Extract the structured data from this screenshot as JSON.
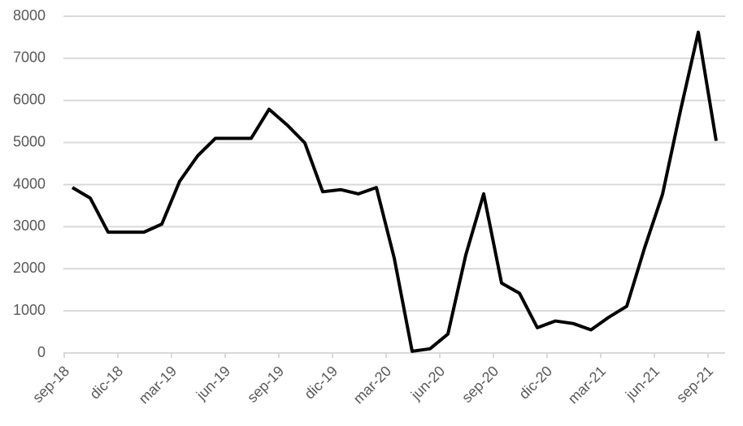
{
  "chart_data": {
    "type": "line",
    "categories": [
      "sep-18",
      null,
      null,
      "dic-18",
      null,
      null,
      "mar-19",
      null,
      null,
      "jun-19",
      null,
      null,
      "sep-19",
      null,
      null,
      "dic-19",
      null,
      null,
      "mar-20",
      null,
      null,
      "jun-20",
      null,
      null,
      "sep-20",
      null,
      null,
      "dic-20",
      null,
      null,
      "mar-21",
      null,
      null,
      "jun-21",
      null,
      null,
      "sep-21"
    ],
    "values": [
      3930,
      3680,
      2870,
      2870,
      2870,
      3060,
      4080,
      4680,
      5100,
      5100,
      5100,
      5790,
      5420,
      4990,
      3830,
      3880,
      3780,
      3930,
      2250,
      40,
      100,
      450,
      2330,
      3780,
      1660,
      1420,
      600,
      760,
      700,
      550,
      850,
      1110,
      2500,
      3770,
      5750,
      7620,
      5040
    ],
    "color": "#000000",
    "ylim": [
      0,
      8000
    ],
    "yticks": [
      0,
      1000,
      2000,
      3000,
      4000,
      5000,
      6000,
      7000,
      8000
    ],
    "grid": true
  }
}
